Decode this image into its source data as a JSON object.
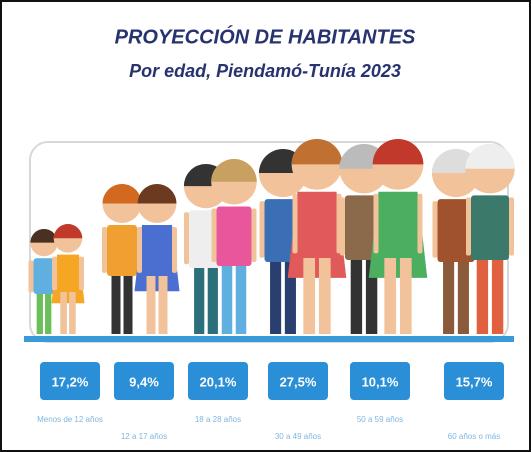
{
  "chart_data": {
    "type": "pictograph",
    "title": "PROYECCIÓN DE HABITANTES",
    "subtitle": "Por edad, Piendamó-Tunía 2023",
    "categories": [
      "Menos de 12 años",
      "12 a 17 años",
      "18 a 28 años",
      "30 a 49 años",
      "50 a 59 años",
      "60 años o más"
    ],
    "values": [
      17.2,
      9.4,
      20.1,
      27.5,
      10.1,
      15.7
    ],
    "value_labels": [
      "17,2%",
      "9,4%",
      "20,1%",
      "27,5%",
      "10,1%",
      "15,7%"
    ],
    "color": "#2a8fd6"
  }
}
